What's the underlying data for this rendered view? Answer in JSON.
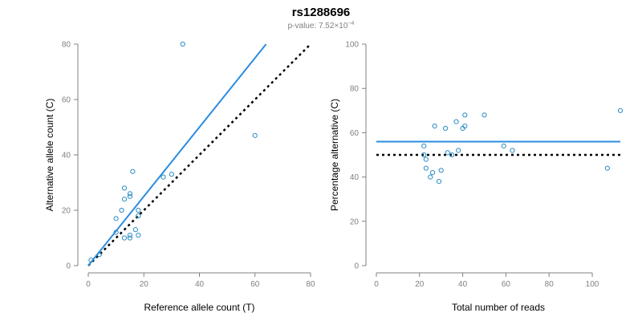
{
  "title": "rs1288696",
  "subtitle_prefix": "p-value: 7.52×10",
  "subtitle_exponent": "−4",
  "colors": {
    "points": "#2b8cc4",
    "fit": "#2b8ce0",
    "reference": "#000000",
    "axis": "#808080"
  },
  "chart_data": [
    {
      "type": "scatter",
      "name": "left",
      "xlabel": "Reference allele count (T)",
      "ylabel": "Alternative allele count (C)",
      "xlim": [
        0,
        80
      ],
      "ylim": [
        0,
        80
      ],
      "xticks": [
        0,
        20,
        40,
        60,
        80
      ],
      "yticks": [
        0,
        20,
        40,
        60,
        80
      ],
      "points": [
        {
          "x": 1,
          "y": 2
        },
        {
          "x": 4,
          "y": 4
        },
        {
          "x": 10,
          "y": 12
        },
        {
          "x": 10,
          "y": 17
        },
        {
          "x": 12,
          "y": 20
        },
        {
          "x": 13,
          "y": 24
        },
        {
          "x": 13,
          "y": 28
        },
        {
          "x": 13,
          "y": 10
        },
        {
          "x": 15,
          "y": 25
        },
        {
          "x": 15,
          "y": 26
        },
        {
          "x": 15,
          "y": 11
        },
        {
          "x": 15,
          "y": 10
        },
        {
          "x": 16,
          "y": 34
        },
        {
          "x": 17,
          "y": 13
        },
        {
          "x": 18,
          "y": 11
        },
        {
          "x": 18,
          "y": 20
        },
        {
          "x": 18,
          "y": 18
        },
        {
          "x": 27,
          "y": 32
        },
        {
          "x": 30,
          "y": 33
        },
        {
          "x": 34,
          "y": 80
        },
        {
          "x": 60,
          "y": 47
        }
      ],
      "fit_line": {
        "x": [
          0,
          64
        ],
        "y": [
          0,
          80
        ]
      },
      "reference_line": {
        "x": [
          0,
          80
        ],
        "y": [
          0,
          80
        ]
      }
    },
    {
      "type": "scatter",
      "name": "right",
      "xlabel": "Total number of reads",
      "ylabel": "Percentage alternative (C)",
      "xlim": [
        0,
        113
      ],
      "ylim": [
        0,
        100
      ],
      "xticks": [
        0,
        20,
        40,
        60,
        80,
        100
      ],
      "yticks": [
        0,
        20,
        40,
        60,
        80,
        100
      ],
      "points": [
        {
          "x": 22,
          "y": 54
        },
        {
          "x": 22,
          "y": 50
        },
        {
          "x": 23,
          "y": 48
        },
        {
          "x": 23,
          "y": 44
        },
        {
          "x": 25,
          "y": 40
        },
        {
          "x": 26,
          "y": 42
        },
        {
          "x": 27,
          "y": 63
        },
        {
          "x": 29,
          "y": 38
        },
        {
          "x": 30,
          "y": 43
        },
        {
          "x": 32,
          "y": 62
        },
        {
          "x": 33,
          "y": 51
        },
        {
          "x": 35,
          "y": 50
        },
        {
          "x": 37,
          "y": 65
        },
        {
          "x": 38,
          "y": 52
        },
        {
          "x": 40,
          "y": 62
        },
        {
          "x": 41,
          "y": 63
        },
        {
          "x": 41,
          "y": 68
        },
        {
          "x": 50,
          "y": 68
        },
        {
          "x": 59,
          "y": 54
        },
        {
          "x": 63,
          "y": 52
        },
        {
          "x": 107,
          "y": 44
        },
        {
          "x": 113,
          "y": 70
        }
      ],
      "fit_line": {
        "x": [
          0,
          113
        ],
        "y": [
          56,
          56
        ]
      },
      "reference_line": {
        "x": [
          0,
          113
        ],
        "y": [
          50,
          50
        ]
      }
    }
  ]
}
